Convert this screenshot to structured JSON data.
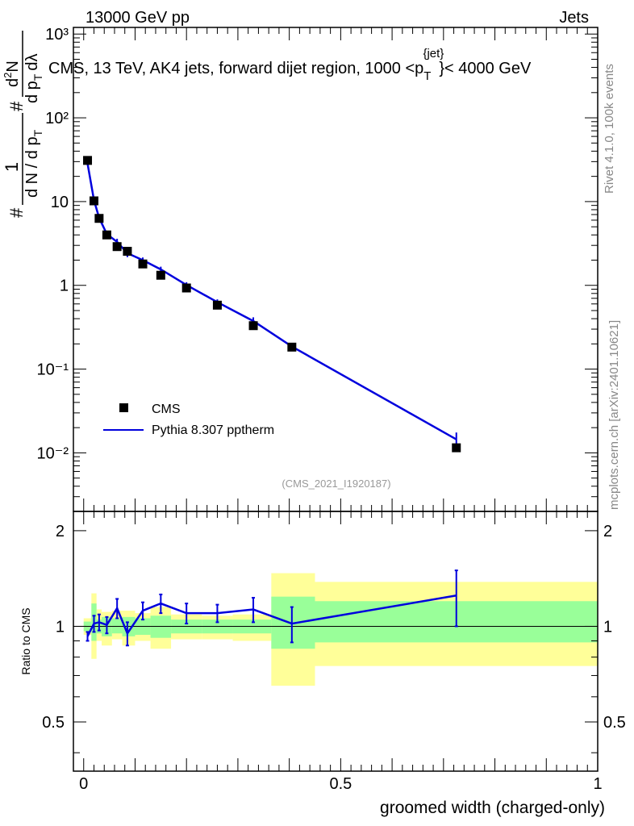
{
  "header": {
    "left": "13000 GeV pp",
    "right": "Jets"
  },
  "main_title": {
    "prefix": "CMS, 13 TeV, AK4 jets, forward dijet region, 1000 <p",
    "sub": "T",
    "sup": "{jet}",
    "suffix": "}< 4000 GeV"
  },
  "y_label_main": {
    "lead": "#",
    "frac1_num": "1",
    "frac1_den": "d N / d p",
    "frac1_den_sub": "T",
    "mid": "#",
    "frac2_num": "d",
    "frac2_num_sup": "2",
    "frac2_num_tail": "N",
    "frac2_den": "d p",
    "frac2_den_sub": "T",
    "frac2_den_tail": "dλ"
  },
  "side_labels": {
    "rivet": "Rivet 4.1.0,  100k events",
    "mcplots": "mcplots.cern.ch [arXiv:2401.10621]"
  },
  "analysis_id": "(CMS_2021_I1920187)",
  "legend": [
    {
      "label": "CMS",
      "kind": "marker"
    },
    {
      "label": "Pythia 8.307 pptherm",
      "kind": "line"
    }
  ],
  "colors": {
    "data": "#000000",
    "mc": "#0000dd",
    "band_inner": "#99ff99",
    "band_outer": "#ffff99"
  },
  "chart_data": [
    {
      "type": "scatter",
      "panel": "main",
      "yscale": "log",
      "xlim": [
        0,
        1
      ],
      "ylim": [
        0.002,
        1200
      ],
      "ytick_labels": [
        "10⁻²",
        "10⁻¹",
        "1",
        "10",
        "10²",
        "10³"
      ],
      "ytick_values": [
        0.01,
        0.1,
        1,
        10,
        100,
        1000
      ],
      "series": [
        {
          "name": "CMS",
          "x": [
            0.0075,
            0.02,
            0.03,
            0.045,
            0.065,
            0.085,
            0.115,
            0.15,
            0.2,
            0.26,
            0.33,
            0.405,
            0.725
          ],
          "y": [
            31,
            10.2,
            6.3,
            4.0,
            2.9,
            2.55,
            1.8,
            1.32,
            0.93,
            0.58,
            0.33,
            0.183,
            0.0115
          ]
        },
        {
          "name": "Pythia 8.307 pptherm",
          "x": [
            0.0075,
            0.02,
            0.03,
            0.045,
            0.065,
            0.085,
            0.115,
            0.15,
            0.2,
            0.26,
            0.33,
            0.405,
            0.725
          ],
          "y": [
            28.5,
            10.4,
            6.4,
            4.1,
            3.3,
            2.42,
            2.0,
            1.55,
            1.01,
            0.63,
            0.375,
            0.186,
            0.0145
          ],
          "yerr": [
            1.2,
            0.4,
            0.25,
            0.2,
            0.3,
            0.25,
            0.15,
            0.12,
            0.08,
            0.05,
            0.04,
            0.02,
            0.003
          ]
        }
      ]
    },
    {
      "type": "line",
      "panel": "ratio",
      "title": "",
      "xlabel": "groomed width (charged-only)",
      "ylabel": "Ratio to CMS",
      "xlim": [
        -0.02,
        1
      ],
      "ylim": [
        0.35,
        2.3
      ],
      "xtick_labels": [
        "0",
        "0.5",
        "1"
      ],
      "xtick_values": [
        0,
        0.5,
        1
      ],
      "ytick_labels": [
        "0.5",
        "1",
        "2"
      ],
      "ytick_values": [
        0.5,
        1,
        2
      ],
      "reference_line": 1,
      "bins": [
        {
          "lo": 0.0,
          "hi": 0.015,
          "inner": [
            0.965,
            1.035
          ],
          "outer": [
            0.94,
            1.06
          ]
        },
        {
          "lo": 0.015,
          "hi": 0.025,
          "inner": [
            0.9,
            1.18
          ],
          "outer": [
            0.79,
            1.27
          ]
        },
        {
          "lo": 0.025,
          "hi": 0.035,
          "inner": [
            0.95,
            1.05
          ],
          "outer": [
            0.9,
            1.13
          ]
        },
        {
          "lo": 0.035,
          "hi": 0.055,
          "inner": [
            0.93,
            1.07
          ],
          "outer": [
            0.87,
            1.11
          ]
        },
        {
          "lo": 0.055,
          "hi": 0.075,
          "inner": [
            0.95,
            1.06
          ],
          "outer": [
            0.91,
            1.12
          ]
        },
        {
          "lo": 0.075,
          "hi": 0.1,
          "inner": [
            0.93,
            1.07
          ],
          "outer": [
            0.87,
            1.12
          ]
        },
        {
          "lo": 0.1,
          "hi": 0.13,
          "inner": [
            0.94,
            1.06
          ],
          "outer": [
            0.9,
            1.1
          ]
        },
        {
          "lo": 0.13,
          "hi": 0.17,
          "inner": [
            0.92,
            1.08
          ],
          "outer": [
            0.85,
            1.15
          ]
        },
        {
          "lo": 0.17,
          "hi": 0.23,
          "inner": [
            0.95,
            1.05
          ],
          "outer": [
            0.91,
            1.09
          ]
        },
        {
          "lo": 0.23,
          "hi": 0.29,
          "inner": [
            0.95,
            1.05
          ],
          "outer": [
            0.91,
            1.08
          ]
        },
        {
          "lo": 0.29,
          "hi": 0.365,
          "inner": [
            0.95,
            1.05
          ],
          "outer": [
            0.9,
            1.09
          ]
        },
        {
          "lo": 0.365,
          "hi": 0.45,
          "inner": [
            0.85,
            1.24
          ],
          "outer": [
            0.65,
            1.47
          ]
        },
        {
          "lo": 0.45,
          "hi": 1.0,
          "inner": [
            0.89,
            1.2
          ],
          "outer": [
            0.75,
            1.38
          ]
        }
      ],
      "series": [
        {
          "name": "Pythia 8.307 pptherm / CMS",
          "x": [
            0.0075,
            0.02,
            0.03,
            0.045,
            0.065,
            0.085,
            0.115,
            0.15,
            0.2,
            0.26,
            0.33,
            0.405,
            0.725
          ],
          "y": [
            0.93,
            1.02,
            1.03,
            1.01,
            1.14,
            0.95,
            1.12,
            1.18,
            1.1,
            1.1,
            1.13,
            1.02,
            1.25
          ],
          "yerr": [
            0.03,
            0.06,
            0.06,
            0.06,
            0.08,
            0.08,
            0.07,
            0.08,
            0.08,
            0.07,
            0.1,
            0.13,
            0.25
          ]
        }
      ]
    }
  ]
}
